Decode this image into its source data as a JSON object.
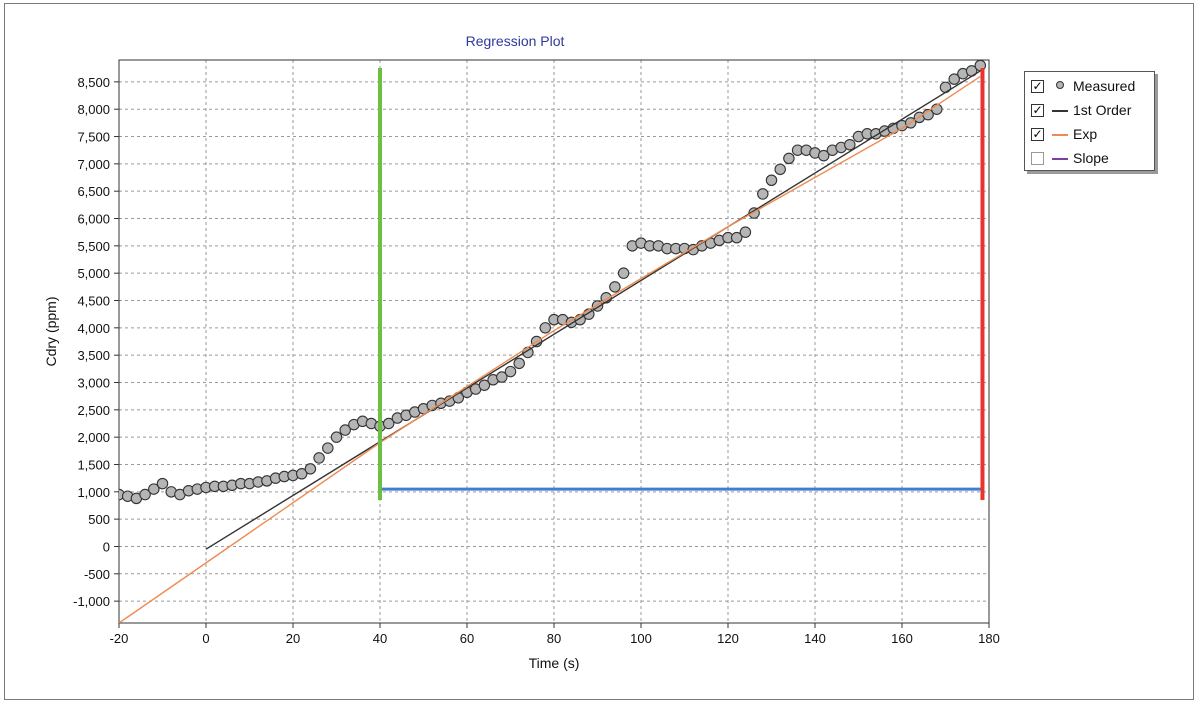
{
  "chart_data": {
    "type": "scatter",
    "title": "Regression Plot",
    "xlabel": "Time (s)",
    "ylabel": "Cdry (ppm)",
    "xlim": [
      -20,
      180
    ],
    "ylim": [
      -1400,
      8900
    ],
    "xticks": [
      -20,
      0,
      20,
      40,
      60,
      80,
      100,
      120,
      140,
      160,
      180
    ],
    "xtick_labels": [
      "-20",
      "0",
      "20",
      "40",
      "60",
      "80",
      "100",
      "120",
      "140",
      "160",
      "180"
    ],
    "yticks": [
      -1000,
      -500,
      0,
      500,
      1000,
      1500,
      2000,
      2500,
      3000,
      3500,
      4000,
      4500,
      5000,
      5500,
      6000,
      6500,
      7000,
      7500,
      8000,
      8500
    ],
    "ytick_labels": [
      "-1,000",
      "-500",
      "0",
      "500",
      "1,000",
      "1,500",
      "2,000",
      "2,500",
      "3,000",
      "3,500",
      "4,000",
      "4,500",
      "5,000",
      "5,500",
      "6,000",
      "6,500",
      "7,000",
      "7,500",
      "8,000",
      "8,500"
    ],
    "grid": true,
    "legend_position": "right",
    "series": [
      {
        "name": "Measured",
        "kind": "points",
        "color": "#b5b5b5",
        "edge_color": "#333333",
        "x": [
          -20,
          -18,
          -16,
          -14,
          -12,
          -10,
          -8,
          -6,
          -4,
          -2,
          0,
          2,
          4,
          6,
          8,
          10,
          12,
          14,
          16,
          18,
          20,
          22,
          24,
          26,
          28,
          30,
          32,
          34,
          36,
          38,
          40,
          42,
          44,
          46,
          48,
          50,
          52,
          54,
          56,
          58,
          60,
          62,
          64,
          66,
          68,
          70,
          72,
          74,
          76,
          78,
          80,
          82,
          84,
          86,
          88,
          90,
          92,
          94,
          96,
          98,
          100,
          102,
          104,
          106,
          108,
          110,
          112,
          114,
          116,
          118,
          120,
          122,
          124,
          126,
          128,
          130,
          132,
          134,
          136,
          138,
          140,
          142,
          144,
          146,
          148,
          150,
          152,
          154,
          156,
          158,
          160,
          162,
          164,
          166,
          168,
          170,
          172,
          174,
          176,
          178
        ],
        "y": [
          950,
          920,
          880,
          950,
          1050,
          1150,
          1000,
          950,
          1020,
          1050,
          1080,
          1100,
          1100,
          1120,
          1150,
          1150,
          1180,
          1200,
          1250,
          1280,
          1300,
          1330,
          1420,
          1620,
          1800,
          2000,
          2130,
          2230,
          2290,
          2250,
          2200,
          2250,
          2350,
          2400,
          2460,
          2520,
          2580,
          2620,
          2660,
          2720,
          2820,
          2880,
          2950,
          3050,
          3100,
          3200,
          3350,
          3550,
          3750,
          4000,
          4150,
          4150,
          4100,
          4150,
          4250,
          4400,
          4550,
          4750,
          5000,
          5500,
          5550,
          5500,
          5500,
          5450,
          5450,
          5450,
          5430,
          5500,
          5550,
          5600,
          5650,
          5650,
          5750,
          6100,
          6450,
          6700,
          6900,
          7100,
          7250,
          7250,
          7200,
          7150,
          7250,
          7300,
          7350,
          7500,
          7550,
          7550,
          7600,
          7650,
          7700,
          7750,
          7850,
          7900,
          8000,
          8400,
          8550,
          8650,
          8700,
          8800
        ]
      },
      {
        "name": "1st Order",
        "kind": "line",
        "color": "#333333",
        "x": [
          0,
          178
        ],
        "y": [
          -50,
          8700
        ]
      },
      {
        "name": "Exp",
        "kind": "line",
        "color": "#f08a50",
        "x": [
          -20,
          0,
          40,
          80,
          120,
          160,
          178
        ],
        "y": [
          -1400,
          -300,
          1900,
          3950,
          5850,
          7650,
          8600
        ]
      },
      {
        "name": "Slope",
        "kind": "line",
        "color": "#7b3fa0",
        "visible": false
      }
    ],
    "markers": {
      "start_x": 40,
      "end_x": 178.5,
      "baseline_y": 1050,
      "cursor_bottom_y": 850,
      "start_color": "#6cbf44",
      "end_color": "#e8332f",
      "baseline_color": "#3f7fd1"
    }
  },
  "legend": {
    "items": [
      {
        "label": "Measured",
        "checked": true
      },
      {
        "label": "1st Order",
        "checked": true
      },
      {
        "label": "Exp",
        "checked": true
      },
      {
        "label": "Slope",
        "checked": false
      }
    ]
  }
}
